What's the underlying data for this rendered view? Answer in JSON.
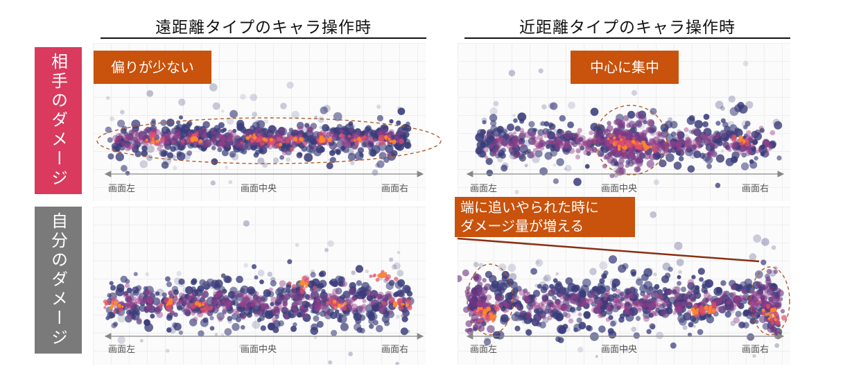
{
  "columns": [
    {
      "title": "遠距離タイプのキャラ操作時"
    },
    {
      "title": "近距離タイプのキャラ操作時"
    }
  ],
  "rows": [
    {
      "label": "相手のダメージ",
      "color": "#d93a5d"
    },
    {
      "label": "自分のダメージ",
      "color": "#7a7a7a"
    }
  ],
  "axis": {
    "left": "画面左",
    "center": "画面中央",
    "right": "画面右"
  },
  "callouts": {
    "ranged_opponent": "偏りが少ない",
    "melee_opponent": "中心に集中",
    "melee_self_line1": "端に追いやられた時に",
    "melee_self_line2": "ダメージ量が増える"
  },
  "colors": {
    "callout": "#c9520c",
    "dot": "#3a3c7a",
    "hot": "#ff8a2a",
    "ellipse": "#b05a2a"
  }
}
